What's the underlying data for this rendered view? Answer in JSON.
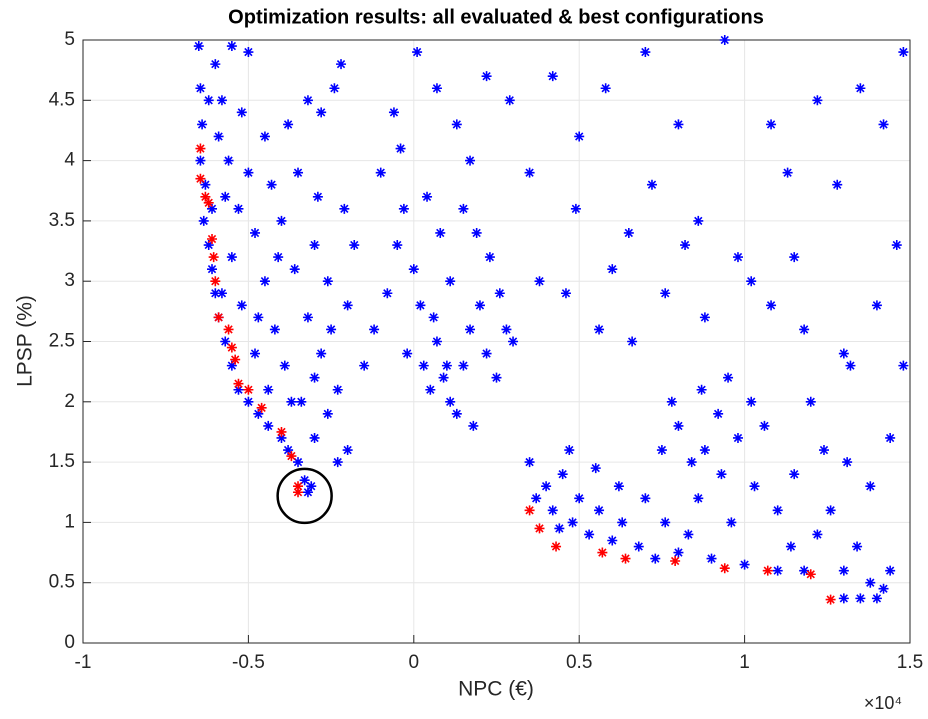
{
  "chart_data": {
    "type": "scatter",
    "title": "Optimization results: all evaluated & best configurations",
    "x_label": "NPC (€)",
    "y_label": "LPSP (%)",
    "x_multiplier_label": "×10⁴",
    "xlim": [
      -10000,
      15000
    ],
    "xticks": [
      {
        "value": -10000,
        "label": "-1"
      },
      {
        "value": -5000,
        "label": "-0.5"
      },
      0,
      {
        "value": 5000,
        "label": "0.5"
      },
      {
        "value": 10000,
        "label": "1"
      },
      {
        "value": 15000,
        "label": "1.5"
      }
    ],
    "ylim": [
      0,
      5
    ],
    "yticks": [
      0,
      0.5,
      1,
      1.5,
      2,
      2.5,
      3,
      3.5,
      4,
      4.5,
      5
    ],
    "grid": true,
    "highlight": {
      "x": -3300,
      "y": 1.22
    },
    "series": [
      {
        "color": "#0000ff",
        "x": [
          -6500,
          -6450,
          -6400,
          -6450,
          -6300,
          -6350,
          -6200,
          -6100,
          -6000,
          -5900,
          -5700,
          -5500,
          -5300,
          -5000,
          -4700,
          -4400,
          -4000,
          -3800,
          -3500,
          -3300,
          -3200,
          -3100,
          -6000,
          -5500,
          -5000,
          -5800,
          -5200,
          -4500,
          -3800,
          -3200,
          -2800,
          -2400,
          -2200,
          -5600,
          -5000,
          -4300,
          -3500,
          -2900,
          -5300,
          -4800,
          -4000,
          -3000,
          -5500,
          -4500,
          -3600,
          -2600,
          -5200,
          -4200,
          -3200,
          -2500,
          -4800,
          -3900,
          -3000,
          -2300,
          -4400,
          -3400,
          -2600,
          -2000,
          -3000,
          -2300,
          -2000,
          -1800,
          -2100,
          -4700,
          -5700,
          -5900,
          -6200,
          -6100,
          -5800,
          -4100,
          -3700,
          -2800,
          -1200,
          -800,
          -500,
          -300,
          0,
          200,
          -200,
          300,
          500,
          700,
          900,
          1100,
          1300,
          1500,
          1700,
          2000,
          2200,
          2500,
          2800,
          3000,
          2600,
          2300,
          1900,
          1500,
          1100,
          800,
          400,
          600,
          1000,
          1800,
          -1000,
          -600,
          -400,
          100,
          700,
          1300,
          2200,
          2900,
          1700,
          -1500,
          3500,
          3700,
          4000,
          4200,
          4500,
          4800,
          5000,
          5300,
          5600,
          6000,
          6300,
          4400,
          4700,
          5500,
          6200,
          6800,
          7000,
          7300,
          7600,
          8000,
          8300,
          8600,
          9000,
          9300,
          9600,
          10000,
          10300,
          10600,
          9800,
          9200,
          8800,
          8400,
          8000,
          7500,
          7800,
          8700,
          9500,
          10200,
          11000,
          11400,
          11800,
          12200,
          12600,
          13000,
          13400,
          13800,
          14200,
          14400,
          13000,
          13500,
          14000,
          12400,
          13100,
          13800,
          14400,
          11500,
          11000,
          12000,
          13200,
          3500,
          4200,
          5000,
          5800,
          6500,
          7200,
          8000,
          8600,
          9400,
          10200,
          10800,
          11500,
          12200,
          12800,
          13500,
          14200,
          14800,
          14600,
          14000,
          13000,
          11800,
          10800,
          9800,
          8800,
          7600,
          6600,
          5600,
          4600,
          3800,
          4900,
          6000,
          7000,
          8200,
          11300,
          14800
        ],
        "values": [
          4.95,
          4.6,
          4.3,
          4.0,
          3.8,
          3.5,
          3.3,
          3.1,
          2.9,
          2.7,
          2.5,
          2.3,
          2.1,
          2.0,
          1.9,
          1.8,
          1.7,
          1.6,
          1.5,
          1.35,
          1.25,
          1.3,
          4.8,
          4.95,
          4.9,
          4.5,
          4.4,
          4.2,
          4.3,
          4.5,
          4.4,
          4.6,
          4.8,
          4.0,
          3.9,
          3.8,
          3.9,
          3.7,
          3.6,
          3.4,
          3.5,
          3.3,
          3.2,
          3.0,
          3.1,
          3.0,
          2.8,
          2.6,
          2.7,
          2.6,
          2.4,
          2.3,
          2.2,
          2.1,
          2.1,
          2.0,
          1.9,
          1.6,
          1.7,
          1.5,
          2.8,
          3.3,
          3.6,
          2.7,
          3.7,
          4.2,
          4.5,
          3.6,
          2.9,
          3.2,
          2.0,
          2.4,
          2.6,
          2.9,
          3.3,
          3.6,
          3.1,
          2.8,
          2.4,
          2.3,
          2.1,
          2.5,
          2.2,
          2.0,
          1.9,
          2.3,
          2.6,
          2.8,
          2.4,
          2.2,
          2.6,
          2.5,
          2.9,
          3.2,
          3.4,
          3.6,
          3.0,
          3.4,
          3.7,
          2.7,
          2.3,
          1.8,
          3.9,
          4.4,
          4.1,
          4.9,
          4.6,
          4.3,
          4.7,
          4.5,
          4.0,
          2.3,
          1.5,
          1.2,
          1.3,
          1.1,
          1.4,
          1.0,
          1.2,
          0.9,
          1.1,
          0.85,
          1.0,
          0.95,
          1.6,
          1.45,
          1.3,
          0.8,
          1.2,
          0.7,
          1.0,
          0.75,
          0.9,
          1.2,
          0.7,
          1.4,
          1.0,
          0.65,
          1.3,
          1.8,
          1.7,
          1.9,
          1.6,
          1.5,
          1.8,
          1.6,
          2.0,
          2.1,
          2.2,
          2.0,
          0.6,
          0.8,
          0.6,
          0.9,
          1.1,
          0.6,
          0.8,
          0.5,
          0.45,
          0.6,
          0.37,
          0.37,
          0.37,
          1.6,
          1.5,
          1.3,
          1.7,
          1.4,
          1.1,
          2.0,
          2.3,
          3.9,
          4.7,
          4.2,
          4.6,
          3.4,
          3.8,
          4.3,
          3.5,
          5.0,
          3.0,
          4.3,
          3.2,
          4.5,
          3.8,
          4.6,
          4.3,
          4.9,
          3.3,
          2.8,
          2.4,
          2.6,
          2.8,
          3.2,
          2.7,
          2.9,
          2.5,
          2.6,
          2.9,
          3.0,
          3.6,
          3.1,
          4.9,
          3.3,
          3.9,
          2.3
        ]
      },
      {
        "color": "#ff0000",
        "x": [
          -6450,
          -6450,
          -6300,
          -6200,
          -6100,
          -6050,
          -6000,
          -5900,
          -5600,
          -5500,
          -5400,
          -5300,
          -5000,
          -4600,
          -4000,
          -3700,
          -3500,
          -3500,
          3500,
          3800,
          4300,
          5700,
          6400,
          7900,
          9400,
          10700,
          12000,
          12600
        ],
        "values": [
          4.1,
          3.85,
          3.7,
          3.65,
          3.35,
          3.2,
          3.0,
          2.7,
          2.6,
          2.45,
          2.35,
          2.15,
          2.1,
          1.95,
          1.75,
          1.55,
          1.3,
          1.25,
          1.1,
          0.95,
          0.8,
          0.75,
          0.7,
          0.68,
          0.62,
          0.6,
          0.57,
          0.36
        ]
      }
    ]
  }
}
